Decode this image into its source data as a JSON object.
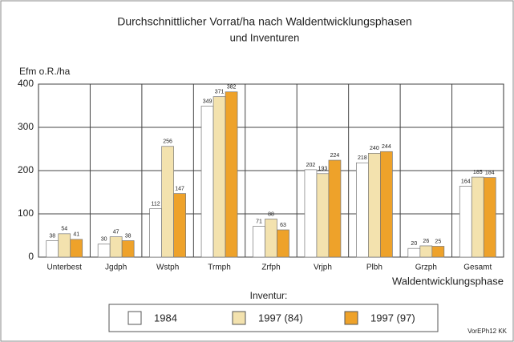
{
  "chart_data": {
    "type": "bar",
    "title": "Durchschnittlicher Vorrat/ha nach Waldentwicklungsphasen",
    "subtitle": "und Inventuren",
    "y_label": "Efm o.R./ha",
    "x_label": "Waldentwicklungsphase",
    "categories": [
      "Unterbest",
      "Jgdph",
      "Wstph",
      "Trmph",
      "Zrfph",
      "Vrjph",
      "Plbh",
      "Grzph",
      "Gesamt"
    ],
    "series": [
      {
        "name": "1984",
        "color": "#ffffff",
        "values": [
          38,
          30,
          112,
          349,
          71,
          202,
          218,
          20,
          164
        ]
      },
      {
        "name": "1997 (84)",
        "color": "#f3e2ae",
        "values": [
          54,
          47,
          256,
          371,
          88,
          193,
          240,
          26,
          185
        ]
      },
      {
        "name": "1997 (97)",
        "color": "#eea22a",
        "values": [
          41,
          38,
          147,
          382,
          63,
          224,
          244,
          25,
          184
        ]
      }
    ],
    "ylim": [
      0,
      400
    ],
    "yticks": [
      0,
      100,
      200,
      300,
      400
    ],
    "grid": true,
    "legend_title": "Inventur:",
    "footer": "VorEPh12  KK"
  }
}
